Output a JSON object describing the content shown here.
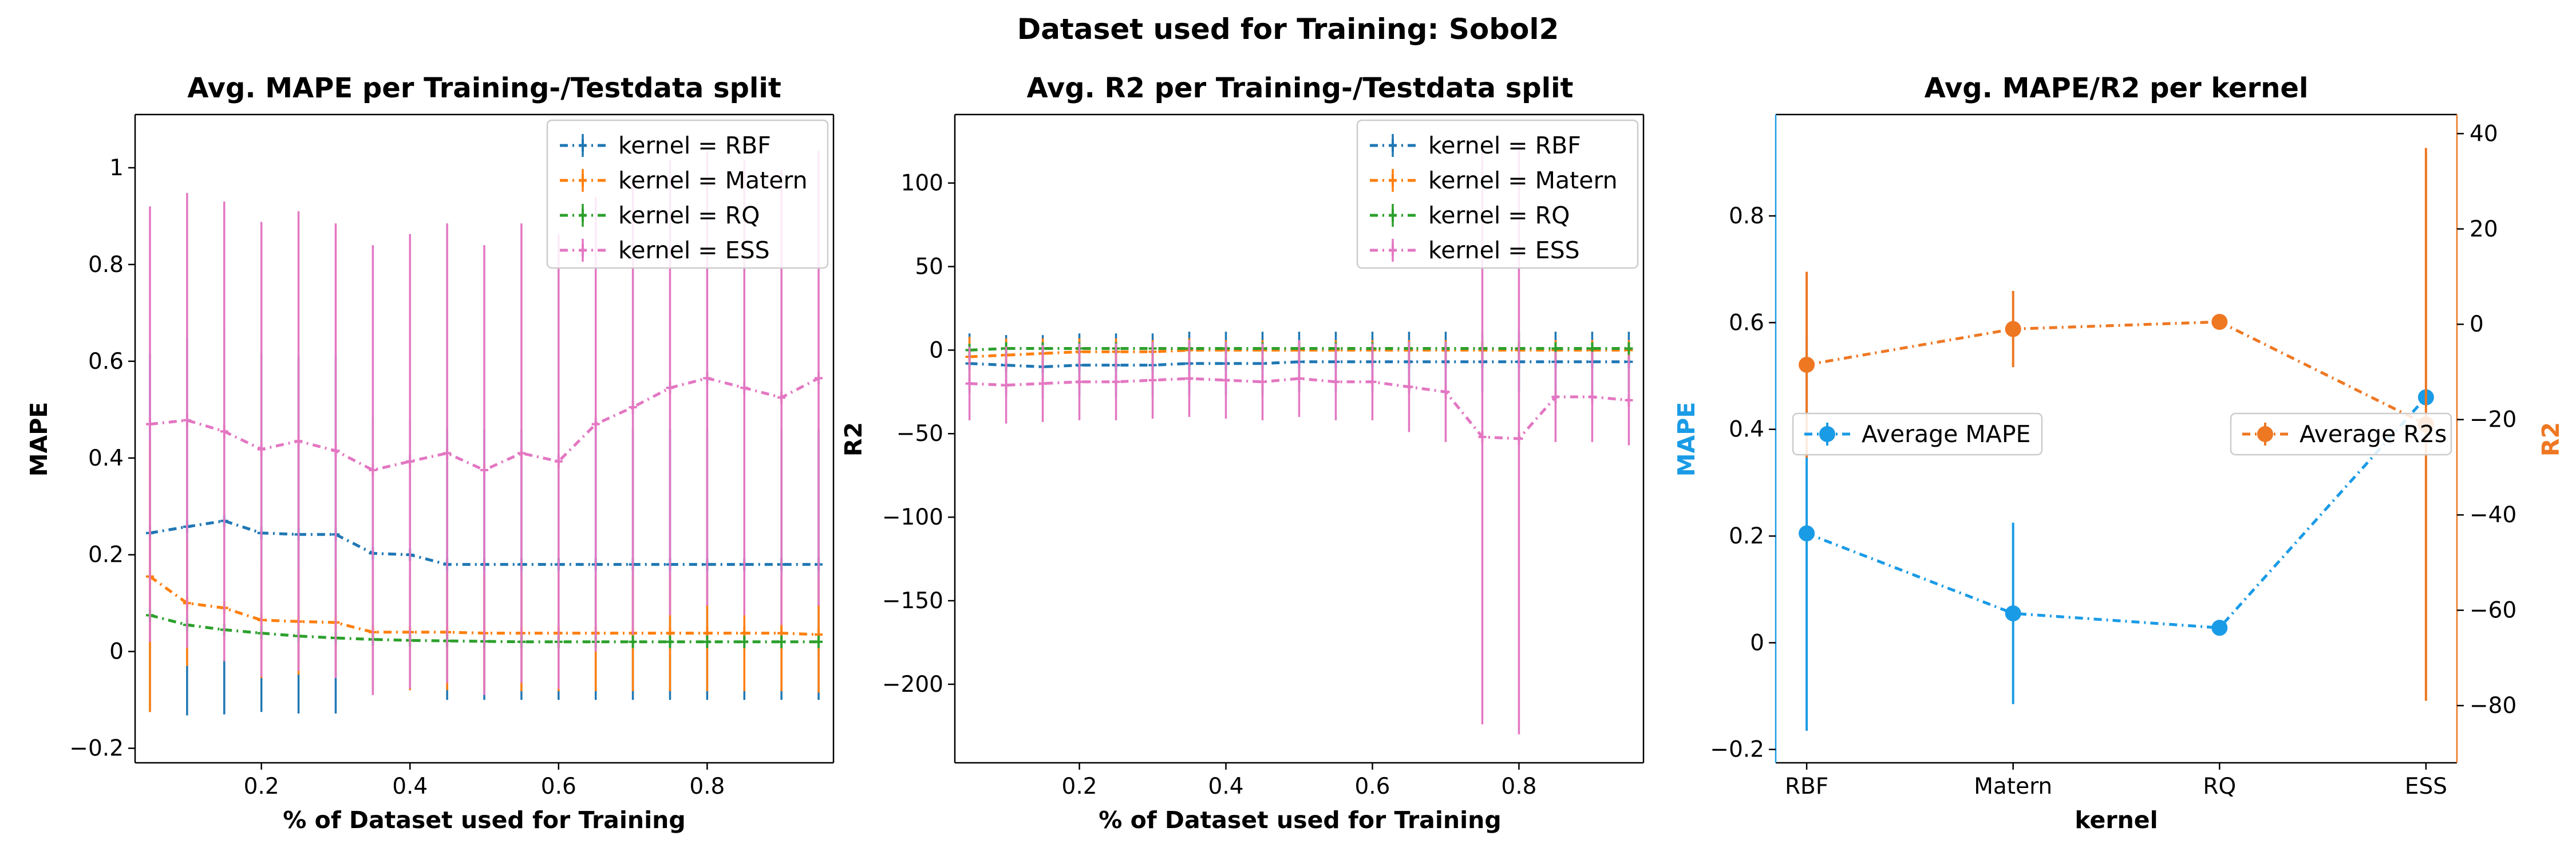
{
  "suptitle": "Dataset used for Training: Sobol2",
  "colors": {
    "RBF": "#1f77b4",
    "Matern": "#ff7f0e",
    "RQ": "#2ca02c",
    "ESS": "#e377c2",
    "mape_axis": "#1a9be6",
    "r2_axis": "#ee7722"
  },
  "chart_data": [
    {
      "type": "line",
      "title": "Avg. MAPE per Training-/Testdata split",
      "xlabel": "% of Dataset used for Training",
      "ylabel": "MAPE",
      "xlim": [
        0.03,
        0.97
      ],
      "ylim": [
        -0.23,
        1.11
      ],
      "xticks": [
        0.2,
        0.4,
        0.6,
        0.8
      ],
      "yticks": [
        -0.2,
        0.0,
        0.2,
        0.4,
        0.6,
        0.8,
        1.0
      ],
      "legend_position": "top-right",
      "x": [
        0.05,
        0.1,
        0.15,
        0.2,
        0.25,
        0.3,
        0.35,
        0.4,
        0.45,
        0.5,
        0.55,
        0.6,
        0.65,
        0.7,
        0.75,
        0.8,
        0.85,
        0.9,
        0.95
      ],
      "series": [
        {
          "name": "kernel = RBF",
          "color_key": "RBF",
          "dash": "14,8,3,8",
          "values": [
            0.245,
            0.258,
            0.27,
            0.245,
            0.242,
            0.242,
            0.203,
            0.2,
            0.18,
            0.18,
            0.18,
            0.18,
            0.18,
            0.18,
            0.18,
            0.18,
            0.18,
            0.18,
            0.18
          ],
          "errors": [
            0.37,
            0.39,
            0.4,
            0.37,
            0.37,
            0.37,
            0.28,
            0.28,
            0.28,
            0.28,
            0.28,
            0.28,
            0.28,
            0.28,
            0.28,
            0.28,
            0.28,
            0.28,
            0.28
          ]
        },
        {
          "name": "kernel = Matern",
          "color_key": "Matern",
          "dash": "14,8,3,8",
          "values": [
            0.155,
            0.1,
            0.09,
            0.065,
            0.062,
            0.06,
            0.04,
            0.04,
            0.04,
            0.038,
            0.038,
            0.038,
            0.038,
            0.038,
            0.038,
            0.038,
            0.038,
            0.038,
            0.035
          ],
          "errors": [
            0.28,
            0.13,
            0.11,
            0.12,
            0.11,
            0.11,
            0.12,
            0.12,
            0.12,
            0.12,
            0.12,
            0.12,
            0.12,
            0.12,
            0.12,
            0.12,
            0.12,
            0.12,
            0.12
          ]
        },
        {
          "name": "kernel = RQ",
          "color_key": "RQ",
          "dash": "14,8,3,8",
          "values": [
            0.075,
            0.055,
            0.045,
            0.038,
            0.032,
            0.028,
            0.025,
            0.023,
            0.022,
            0.021,
            0.02,
            0.02,
            0.02,
            0.02,
            0.02,
            0.02,
            0.02,
            0.02,
            0.02
          ],
          "errors": [
            0.01,
            0.008,
            0.007,
            0.006,
            0.006,
            0.005,
            0.005,
            0.005,
            0.005,
            0.005,
            0.005,
            0.005,
            0.005,
            0.005,
            0.005,
            0.005,
            0.005,
            0.005,
            0.005
          ]
        },
        {
          "name": "kernel = ESS",
          "color_key": "ESS",
          "dash": "14,8,3,8",
          "values": [
            0.47,
            0.478,
            0.455,
            0.418,
            0.435,
            0.415,
            0.375,
            0.393,
            0.41,
            0.375,
            0.41,
            0.393,
            0.47,
            0.505,
            0.545,
            0.565,
            0.545,
            0.525,
            0.565
          ],
          "errors": [
            0.45,
            0.47,
            0.475,
            0.47,
            0.475,
            0.47,
            0.465,
            0.47,
            0.475,
            0.465,
            0.475,
            0.47,
            0.47,
            0.47,
            0.47,
            0.47,
            0.47,
            0.47,
            0.47
          ]
        }
      ]
    },
    {
      "type": "line",
      "title": "Avg. R2 per Training-/Testdata split",
      "xlabel": "% of Dataset used for Training",
      "ylabel": "R2",
      "xlim": [
        0.03,
        0.97
      ],
      "ylim": [
        -247,
        141
      ],
      "xticks": [
        0.2,
        0.4,
        0.6,
        0.8
      ],
      "yticks": [
        -200,
        -150,
        -100,
        -50,
        0,
        50,
        100
      ],
      "legend_position": "top-right",
      "x": [
        0.05,
        0.1,
        0.15,
        0.2,
        0.25,
        0.3,
        0.35,
        0.4,
        0.45,
        0.5,
        0.55,
        0.6,
        0.65,
        0.7,
        0.75,
        0.8,
        0.85,
        0.9,
        0.95
      ],
      "series": [
        {
          "name": "kernel = RBF",
          "color_key": "RBF",
          "dash": "14,8,3,8",
          "values": [
            -8,
            -9,
            -10,
            -9,
            -9,
            -9,
            -8,
            -8,
            -8,
            -7,
            -7,
            -7,
            -7,
            -7,
            -7,
            -7,
            -7,
            -7,
            -7
          ],
          "errors": [
            18,
            18,
            19,
            19,
            19,
            19,
            19,
            19,
            19,
            18,
            18,
            18,
            18,
            18,
            18,
            18,
            18,
            18,
            18
          ]
        },
        {
          "name": "kernel = Matern",
          "color_key": "Matern",
          "dash": "14,8,3,8",
          "values": [
            -4,
            -3,
            -2,
            -1,
            -1,
            -1,
            0,
            0,
            0,
            0,
            0,
            0,
            0,
            0,
            0,
            0,
            0,
            0,
            0
          ],
          "errors": [
            12,
            10,
            9,
            8,
            8,
            7,
            7,
            6,
            6,
            6,
            6,
            6,
            6,
            6,
            6,
            6,
            6,
            6,
            6
          ]
        },
        {
          "name": "kernel = RQ",
          "color_key": "RQ",
          "dash": "14,8,3,8",
          "values": [
            0,
            1,
            1,
            1,
            1,
            1,
            1,
            1,
            1,
            1,
            1,
            1,
            1,
            1,
            1,
            1,
            1,
            1,
            1
          ],
          "errors": [
            2,
            2,
            2,
            2,
            2,
            2,
            2,
            2,
            2,
            2,
            2,
            2,
            2,
            2,
            2,
            2,
            2,
            2,
            2
          ]
        },
        {
          "name": "kernel = ESS",
          "color_key": "ESS",
          "dash": "14,8,3,8",
          "values": [
            -20,
            -21,
            -20,
            -19,
            -19,
            -18,
            -17,
            -18,
            -19,
            -17,
            -19,
            -19,
            -22,
            -25,
            -52,
            -53,
            -28,
            -28,
            -30
          ],
          "errors": [
            22,
            23,
            23,
            23,
            23,
            23,
            23,
            23,
            23,
            23,
            23,
            23,
            27,
            30,
            172,
            177,
            27,
            27,
            27
          ]
        }
      ]
    },
    {
      "type": "line",
      "title": "Avg. MAPE/R2 per kernel",
      "xlabel": "kernel",
      "ylabel": "MAPE",
      "ylabel_right": "R2",
      "categories": [
        "RBF",
        "Matern",
        "RQ",
        "ESS"
      ],
      "ylim": [
        -0.225,
        0.99
      ],
      "yticks": [
        -0.2,
        0.0,
        0.2,
        0.4,
        0.6,
        0.8
      ],
      "ylim_right": [
        -92,
        44
      ],
      "yticks_right": [
        -80,
        -60,
        -40,
        -20,
        0,
        20,
        40
      ],
      "series": [
        {
          "name": "Average MAPE",
          "axis": "left",
          "color_key": "mape_axis",
          "dash": "14,8,3,8",
          "values": [
            0.205,
            0.055,
            0.028,
            0.46
          ],
          "errors": [
            0.37,
            0.17,
            0.005,
            0.01
          ],
          "legend_position": "center-left"
        },
        {
          "name": "Average R2s",
          "axis": "right",
          "color_key": "r2_axis",
          "dash": "14,8,3,8",
          "values": [
            -8.5,
            -1,
            0.5,
            -21
          ],
          "errors": [
            19.5,
            8,
            0.5,
            58
          ],
          "legend_position": "center-right"
        }
      ]
    }
  ]
}
